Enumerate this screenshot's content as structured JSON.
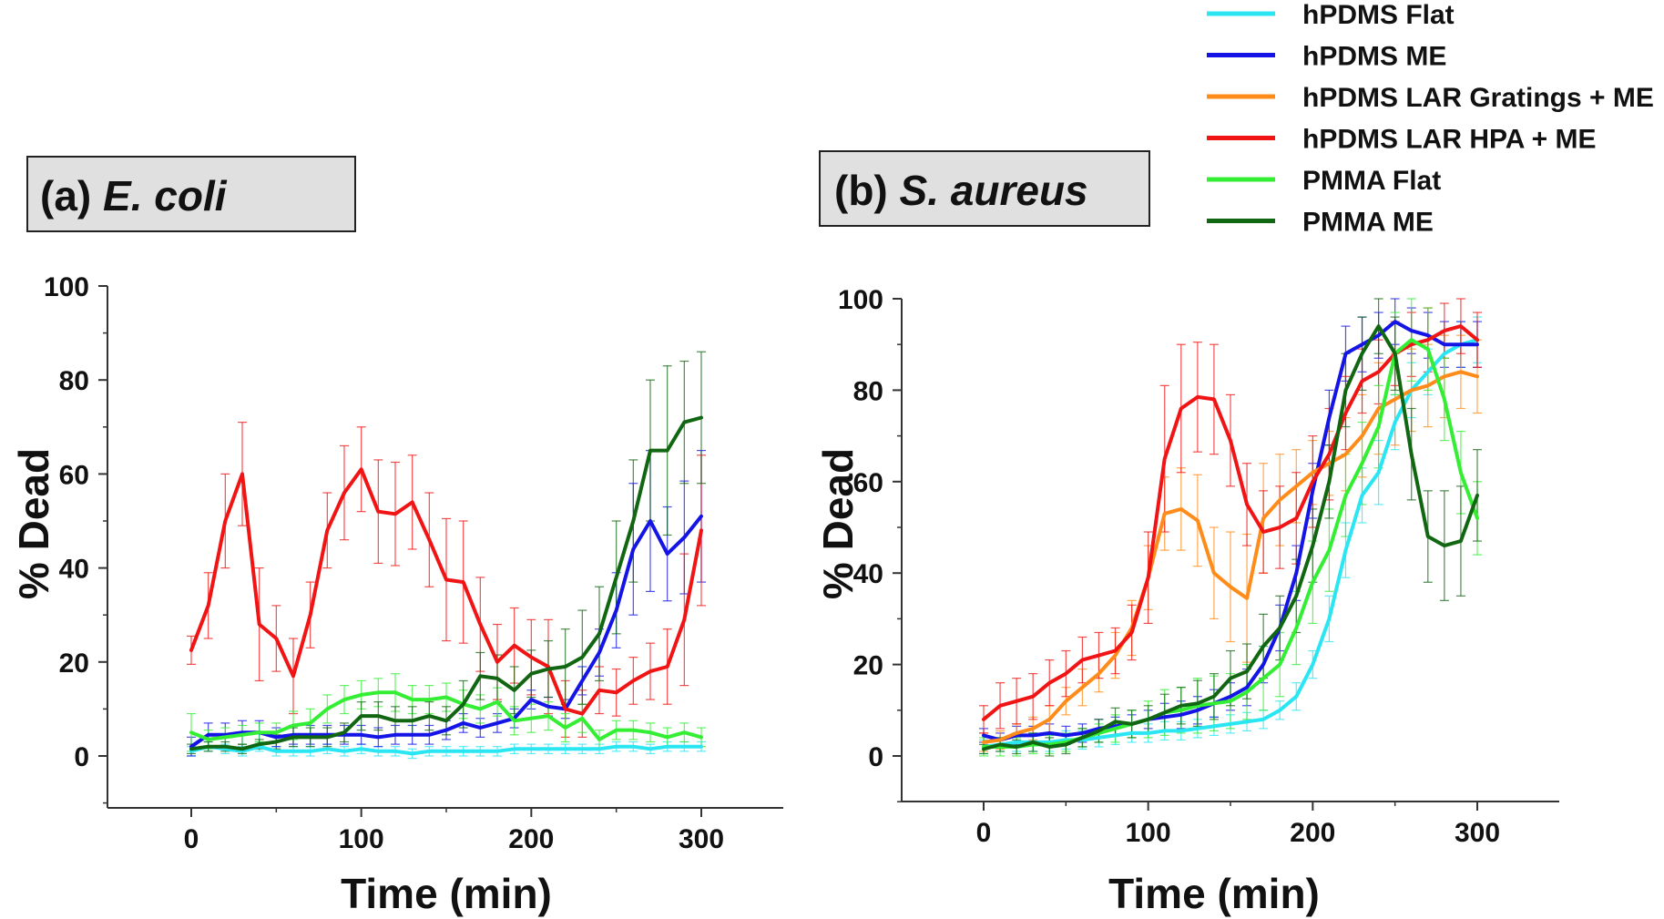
{
  "legend": {
    "entries": [
      {
        "label": "hPDMS Flat",
        "color": "#29e6f2"
      },
      {
        "label": "hPDMS ME",
        "color": "#1414e6"
      },
      {
        "label": "hPDMS LAR Gratings + ME",
        "color": "#ff8c1a"
      },
      {
        "label": "hPDMS LAR HPA + ME",
        "color": "#f01414"
      },
      {
        "label": "PMMA Flat",
        "color": "#33ee33"
      },
      {
        "label": "PMMA ME",
        "color": "#116611"
      }
    ]
  },
  "chart_data": [
    {
      "type": "line",
      "panel_label": "(a)",
      "title": "E. coli",
      "xlabel": "Time (min)",
      "ylabel": "% Dead",
      "xlim": [
        -50,
        350
      ],
      "ylim": [
        -10,
        100
      ],
      "xticks": [
        0,
        100,
        200,
        300
      ],
      "yticks": [
        0,
        20,
        40,
        60,
        80,
        100
      ],
      "x": [
        0,
        10,
        20,
        30,
        40,
        50,
        60,
        70,
        80,
        90,
        100,
        110,
        120,
        130,
        140,
        150,
        160,
        170,
        180,
        190,
        200,
        210,
        220,
        230,
        240,
        250,
        260,
        270,
        280,
        290,
        300
      ],
      "series": [
        {
          "name": "hPDMS Flat",
          "color": "#29e6f2",
          "values": [
            1,
            2,
            1.5,
            1,
            2,
            1,
            1,
            1,
            1.5,
            1,
            1.5,
            1,
            1,
            0.5,
            1,
            1,
            1,
            1,
            1,
            1.5,
            1.5,
            1.5,
            1.5,
            1.5,
            1.5,
            2,
            2,
            1.5,
            2,
            2,
            2
          ],
          "errors": [
            1,
            1,
            1,
            1,
            1,
            1,
            1,
            1,
            1,
            1,
            1,
            1,
            1,
            1,
            1,
            1,
            1,
            1,
            1,
            1,
            1,
            1,
            1,
            1,
            1,
            1,
            1,
            1,
            1,
            1,
            1
          ]
        },
        {
          "name": "hPDMS ME",
          "color": "#1414e6",
          "values": [
            2,
            4.5,
            4.5,
            5,
            5,
            4,
            4.5,
            4.5,
            4.5,
            4.5,
            4.5,
            4,
            4.5,
            4.5,
            4.5,
            5.5,
            7,
            6,
            7,
            8,
            12,
            10.5,
            10,
            16,
            22,
            31,
            44,
            50,
            43,
            46.5,
            51
          ],
          "errors": [
            2,
            2.5,
            2.5,
            2.5,
            2.5,
            2,
            2,
            2,
            2,
            2,
            2,
            2,
            2,
            2,
            2,
            2,
            2,
            2,
            2,
            2,
            2,
            2,
            2,
            3,
            5,
            8,
            14,
            15,
            10,
            12,
            14
          ]
        },
        {
          "name": "hPDMS LAR HPA + ME",
          "color": "#f01414",
          "values": [
            22.5,
            32,
            50,
            60,
            28,
            25,
            17,
            30,
            48,
            56,
            61,
            52,
            51.5,
            54,
            46,
            37.5,
            37,
            28,
            20,
            23.5,
            21,
            19,
            10,
            9,
            14,
            13.5,
            16,
            18,
            19,
            29,
            48
          ],
          "errors": [
            3,
            7,
            10,
            11,
            12,
            7,
            8,
            7,
            8,
            10,
            9,
            11,
            11,
            10,
            10,
            13,
            13,
            10,
            8,
            8,
            8,
            10,
            6,
            5,
            5,
            5,
            5,
            6,
            8,
            14,
            16
          ]
        },
        {
          "name": "PMMA Flat",
          "color": "#33ee33",
          "values": [
            5,
            3.5,
            4,
            4.5,
            5,
            5,
            6.5,
            7,
            10,
            12,
            13,
            13.5,
            13.5,
            12,
            12,
            12.5,
            11,
            10,
            11.5,
            7.5,
            8,
            8.5,
            6,
            8,
            3.5,
            5.5,
            5.5,
            5,
            4,
            5,
            4
          ],
          "errors": [
            4,
            2,
            2,
            2,
            2,
            2,
            3,
            3,
            3,
            3,
            3,
            3,
            4,
            3,
            3,
            3,
            3,
            3,
            3,
            3,
            3,
            3,
            3,
            3,
            2,
            2,
            2,
            2,
            2,
            2,
            2
          ]
        },
        {
          "name": "PMMA ME",
          "color": "#116611",
          "values": [
            1.5,
            2,
            2,
            1.5,
            2.5,
            3,
            4,
            4,
            4,
            5,
            8.5,
            8.5,
            7.5,
            7.5,
            8.5,
            7.5,
            11,
            17,
            16.5,
            14,
            17.5,
            18.5,
            19,
            21,
            26,
            38,
            50,
            65,
            65,
            71,
            72
          ],
          "errors": [
            1,
            1,
            1,
            1,
            1,
            1.5,
            2,
            2,
            2,
            2,
            3,
            3,
            3,
            3,
            3,
            3,
            5,
            5,
            5,
            5,
            5,
            6,
            8,
            10,
            10,
            12,
            13,
            15,
            18,
            13,
            14
          ]
        }
      ]
    },
    {
      "type": "line",
      "panel_label": "(b)",
      "title": "S. aureus",
      "xlabel": "Time (min)",
      "ylabel": "% Dead",
      "xlim": [
        -50,
        350
      ],
      "ylim": [
        -10,
        100
      ],
      "xticks": [
        0,
        100,
        200,
        300
      ],
      "yticks": [
        0,
        20,
        40,
        60,
        80,
        100
      ],
      "x": [
        0,
        10,
        20,
        30,
        40,
        50,
        60,
        70,
        80,
        90,
        100,
        110,
        120,
        130,
        140,
        150,
        160,
        170,
        180,
        190,
        200,
        210,
        220,
        230,
        240,
        250,
        260,
        270,
        280,
        290,
        300
      ],
      "series": [
        {
          "name": "hPDMS Flat",
          "color": "#29e6f2",
          "values": [
            2,
            2.5,
            3,
            3,
            3,
            3.5,
            3.5,
            4,
            4.5,
            5,
            5,
            5.5,
            5.5,
            6,
            6.5,
            7,
            7.5,
            8,
            10,
            13,
            20,
            30,
            45,
            57,
            62,
            73,
            80,
            84,
            88,
            90,
            91
          ],
          "errors": [
            1.5,
            1.5,
            2,
            2,
            2,
            2,
            2,
            2,
            2,
            2,
            2,
            2,
            2,
            2,
            2,
            2,
            2,
            2,
            2,
            3,
            3,
            5,
            6,
            6,
            7,
            6,
            6,
            5,
            5,
            5,
            5
          ]
        },
        {
          "name": "hPDMS ME",
          "color": "#1414e6",
          "values": [
            4.5,
            3.5,
            4.5,
            4.5,
            5,
            4.5,
            5,
            6,
            6.5,
            7,
            8,
            8.5,
            9,
            10,
            11.5,
            13,
            15,
            20,
            28,
            40,
            58,
            74,
            88,
            90,
            92,
            95,
            93,
            92,
            90,
            90,
            90
          ],
          "errors": [
            1.5,
            1.5,
            2,
            2,
            2,
            2,
            2,
            2,
            2,
            2,
            2,
            3,
            3,
            3,
            3,
            3,
            4,
            4,
            5,
            6,
            6,
            6,
            6,
            6,
            5,
            5,
            5,
            5,
            5,
            5,
            5
          ]
        },
        {
          "name": "hPDMS LAR Gratings + ME",
          "color": "#ff8c1a",
          "values": [
            3,
            3.5,
            5,
            6,
            8,
            12,
            15,
            18,
            22,
            28,
            39,
            53,
            54,
            51.5,
            40,
            37,
            34.5,
            52,
            56,
            59,
            62,
            64,
            66,
            70,
            76,
            78,
            80,
            81,
            83,
            84,
            83
          ],
          "errors": [
            2,
            2,
            2,
            2.5,
            3,
            3,
            4,
            4,
            5,
            6,
            7,
            8,
            9,
            10,
            10,
            12,
            14,
            12,
            10,
            8,
            7,
            7,
            8,
            9,
            10,
            10,
            9,
            9,
            9,
            8,
            8
          ]
        },
        {
          "name": "hPDMS LAR HPA + ME",
          "color": "#f01414",
          "values": [
            8,
            11,
            12,
            13,
            16,
            18,
            21,
            22,
            23,
            27,
            39,
            65,
            76,
            78.5,
            78,
            69,
            55,
            49,
            50,
            52,
            60,
            66,
            75,
            82,
            84,
            88,
            90,
            91,
            93,
            94,
            91
          ],
          "errors": [
            3,
            5,
            5,
            5,
            5,
            5,
            5,
            5,
            5,
            6,
            10,
            16,
            14,
            12,
            12,
            10,
            9,
            9,
            9,
            10,
            10,
            10,
            8,
            7,
            7,
            7,
            7,
            7,
            6,
            6,
            6
          ]
        },
        {
          "name": "PMMA Flat",
          "color": "#33ee33",
          "values": [
            2,
            2,
            2,
            2.5,
            2.5,
            3,
            4,
            5,
            6,
            7,
            8,
            9.5,
            10,
            11,
            11.5,
            12,
            14,
            17,
            20,
            28,
            38,
            45,
            57,
            64,
            72,
            88,
            91,
            89,
            78,
            62,
            52
          ],
          "errors": [
            2,
            2,
            2,
            2,
            2,
            2,
            2,
            2,
            3,
            3,
            4,
            5,
            5,
            6,
            6,
            6,
            6,
            7,
            7,
            8,
            9,
            9,
            9,
            9,
            9,
            9,
            9,
            9,
            9,
            9,
            8
          ]
        },
        {
          "name": "PMMA ME",
          "color": "#116611",
          "values": [
            1.5,
            2.5,
            2,
            3,
            2,
            2.5,
            4,
            5.5,
            7.5,
            7,
            8,
            9.5,
            11,
            11.5,
            13,
            17,
            18.5,
            24,
            28,
            35,
            46,
            60,
            80,
            88,
            94,
            88,
            66,
            48,
            46,
            47,
            57
          ],
          "errors": [
            1,
            1.5,
            1.5,
            2,
            2,
            2,
            2,
            2.5,
            3,
            3,
            3,
            4,
            4,
            5,
            5,
            6,
            6,
            7,
            7,
            8,
            8,
            8,
            8,
            8,
            6,
            8,
            10,
            10,
            12,
            12,
            10
          ]
        }
      ]
    }
  ]
}
